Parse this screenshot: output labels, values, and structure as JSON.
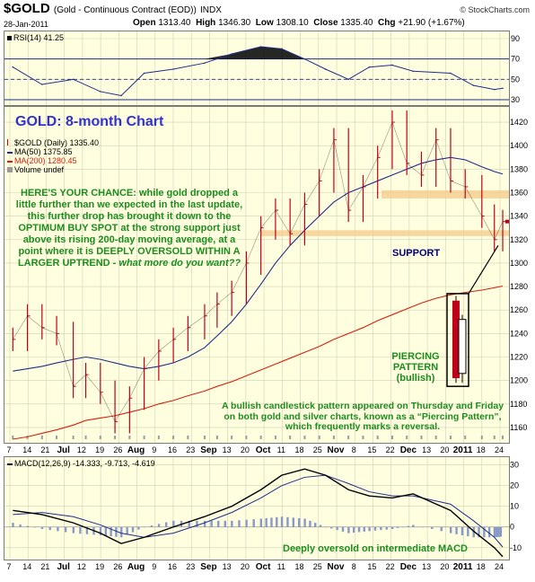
{
  "header": {
    "symbol": "$GOLD",
    "description": "(Gold - Continuous Contract (EOD))",
    "exchange": "INDX",
    "brand": "© StockCharts.com",
    "date": "28-Jan-2011",
    "open_label": "Open",
    "open": "1313.40",
    "high_label": "High",
    "high": "1346.30",
    "low_label": "Low",
    "low": "1308.10",
    "close_label": "Close",
    "close": "1335.40",
    "chg_label": "Chg",
    "chg": "+21.90 (+1.67%)"
  },
  "colors": {
    "background": "#ffffe0",
    "price_bars": "#c0001a",
    "ma50": "#1f2d86",
    "ma200": "#d42010",
    "annotation_green": "#1e8c1e",
    "annotation_navy": "#000080",
    "title_blue": "#3333cc",
    "band": "#f6c98a",
    "volume": "#9a9a9a",
    "macd_hist": "#8899c9"
  },
  "rsi_legend": "RSI(14) 41.25",
  "main_title": "GOLD: 8-month Chart",
  "price_legend": {
    "symbol": "$GOLD (Daily) 1335.40",
    "ma50": "MA(50) 1375.85",
    "ma200": "MA(200) 1280.45",
    "volume": "Volume undef"
  },
  "macd_legend": {
    "label": "MACD(12,26,9)",
    "values": "-14.333, -9.713, -4.619"
  },
  "annotations": {
    "main_text": "HERE'S YOUR CHANCE: while gold dropped a little further than we expected in the last update, this further drop has brought it down to the OPTIMUM BUY SPOT at the strong support just above its rising 200-day moving average, at a point where it is DEEPLY OVERSOLD WITHIN A LARGER UPTREND -",
    "main_text_italic": "what more do you want??",
    "support": "SUPPORT",
    "piercing": "PIERCING PATTERN",
    "piercing_sub": "(bullish)",
    "bullish_note": "A bullish candlestick pattern appeared on Thursday and Friday on both gold and silver charts, known as a “Piercing Pattern”, which frequently marks a reversal.",
    "macd_note": "Deeply oversold on intermediate MACD"
  },
  "chart_data": [
    {
      "type": "line",
      "name": "RSI(14)",
      "ylim": [
        30,
        90
      ],
      "y_ticks": [
        30,
        50,
        70,
        90
      ],
      "x": [
        "2010-06-07",
        "2010-06-21",
        "2010-07-06",
        "2010-07-19",
        "2010-07-29",
        "2010-08-09",
        "2010-08-23",
        "2010-09-07",
        "2010-09-20",
        "2010-10-04",
        "2010-10-14",
        "2010-10-25",
        "2010-11-04",
        "2010-11-15",
        "2010-11-25",
        "2010-12-06",
        "2010-12-16",
        "2011-01-03",
        "2011-01-14",
        "2011-01-24",
        "2011-01-28"
      ],
      "values": [
        62,
        45,
        50,
        38,
        34,
        56,
        60,
        66,
        75,
        82,
        80,
        70,
        60,
        50,
        62,
        64,
        58,
        56,
        44,
        40,
        41.25
      ]
    },
    {
      "type": "bar",
      "name": "$GOLD (Daily)",
      "ylim": [
        1150,
        1430
      ],
      "y_ticks": [
        1160,
        1180,
        1200,
        1220,
        1240,
        1260,
        1280,
        1300,
        1320,
        1340,
        1360,
        1380,
        1400,
        1420
      ],
      "x_ticks": [
        "7",
        "14",
        "21",
        "Jul",
        "12",
        "19",
        "26",
        "Aug",
        "9",
        "16",
        "23",
        "Sep",
        "13",
        "20",
        "Oct",
        "11",
        "18",
        "25",
        "Nov",
        "8",
        "15",
        "22",
        "Dec",
        "13",
        "20",
        "2011",
        "18",
        "24"
      ],
      "x": [
        "2010-06-07",
        "2010-06-14",
        "2010-06-21",
        "2010-06-28",
        "2010-07-06",
        "2010-07-12",
        "2010-07-19",
        "2010-07-26",
        "2010-08-02",
        "2010-08-09",
        "2010-08-16",
        "2010-08-23",
        "2010-08-30",
        "2010-09-07",
        "2010-09-13",
        "2010-09-20",
        "2010-09-27",
        "2010-10-04",
        "2010-10-11",
        "2010-10-18",
        "2010-10-25",
        "2010-11-01",
        "2010-11-08",
        "2010-11-15",
        "2010-11-22",
        "2010-11-29",
        "2010-12-06",
        "2010-12-13",
        "2010-12-20",
        "2010-12-27",
        "2011-01-03",
        "2011-01-10",
        "2011-01-18",
        "2011-01-24",
        "2011-01-28"
      ],
      "close": [
        1235,
        1255,
        1245,
        1240,
        1195,
        1205,
        1190,
        1165,
        1185,
        1210,
        1225,
        1235,
        1245,
        1255,
        1265,
        1275,
        1300,
        1330,
        1345,
        1325,
        1350,
        1370,
        1405,
        1345,
        1365,
        1390,
        1420,
        1385,
        1375,
        1405,
        1370,
        1365,
        1340,
        1320,
        1335.4
      ],
      "ma50": [
        1208,
        1210,
        1212,
        1215,
        1218,
        1220,
        1218,
        1215,
        1212,
        1210,
        1212,
        1215,
        1220,
        1228,
        1238,
        1250,
        1265,
        1282,
        1300,
        1315,
        1328,
        1340,
        1352,
        1360,
        1365,
        1370,
        1375,
        1380,
        1385,
        1388,
        1390,
        1388,
        1382,
        1378,
        1375.85
      ],
      "ma200": [
        1150,
        1152,
        1155,
        1158,
        1162,
        1166,
        1168,
        1170,
        1173,
        1176,
        1180,
        1183,
        1187,
        1191,
        1195,
        1199,
        1204,
        1209,
        1214,
        1219,
        1224,
        1229,
        1235,
        1240,
        1245,
        1251,
        1256,
        1261,
        1266,
        1270,
        1273,
        1275,
        1277,
        1279,
        1280.45
      ],
      "support_bands": [
        [
          1323,
          1328
        ],
        [
          1355,
          1362
        ]
      ]
    },
    {
      "type": "line",
      "name": "MACD(12,26,9)",
      "ylim": [
        -14,
        32
      ],
      "y_ticks": [
        -10,
        0,
        10,
        20,
        30
      ],
      "x": [
        "2010-06-07",
        "2010-06-21",
        "2010-07-06",
        "2010-07-19",
        "2010-07-29",
        "2010-08-09",
        "2010-08-23",
        "2010-09-07",
        "2010-09-20",
        "2010-10-04",
        "2010-10-14",
        "2010-10-25",
        "2010-11-04",
        "2010-11-15",
        "2010-11-25",
        "2010-12-06",
        "2010-12-16",
        "2011-01-03",
        "2011-01-14",
        "2011-01-24",
        "2011-01-28"
      ],
      "series": [
        {
          "name": "MACD",
          "values": [
            8,
            6,
            2,
            -3,
            -8,
            -5,
            0,
            5,
            10,
            18,
            25,
            28,
            25,
            18,
            15,
            14,
            16,
            8,
            -2,
            -10,
            -14.333
          ]
        },
        {
          "name": "Signal",
          "values": [
            6,
            7,
            5,
            1,
            -3,
            -5,
            -3,
            2,
            7,
            14,
            20,
            24,
            25,
            21,
            17,
            15,
            15,
            11,
            3,
            -5,
            -9.713
          ]
        }
      ]
    }
  ]
}
